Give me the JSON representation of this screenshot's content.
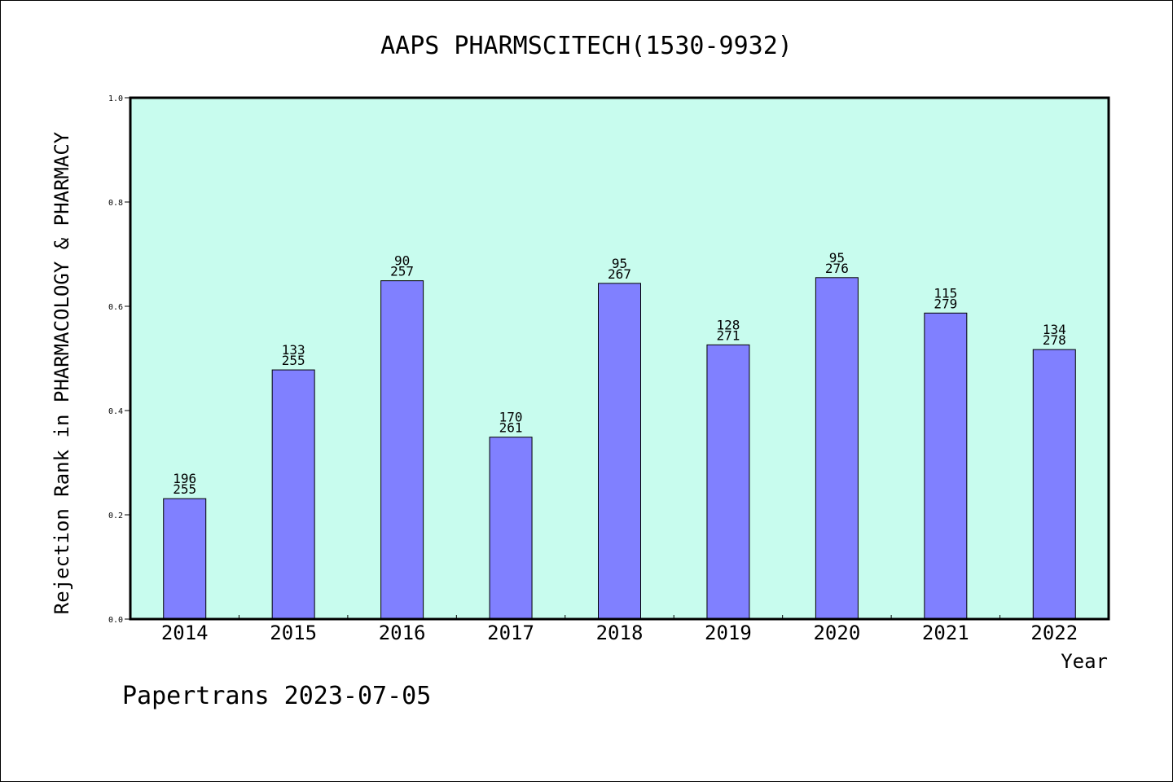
{
  "chart_data": {
    "type": "bar",
    "title": "AAPS PHARMSCITECH(1530-9932)",
    "xlabel": "Year",
    "ylabel": "Rejection Rank in PHARMACOLOGY & PHARMACY",
    "ylim": [
      0.0,
      1.0
    ],
    "yticks": [
      "0.0",
      "0.2",
      "0.4",
      "0.6",
      "0.8",
      "1.0"
    ],
    "grid": false,
    "categories": [
      "2014",
      "2015",
      "2016",
      "2017",
      "2018",
      "2019",
      "2020",
      "2021",
      "2022"
    ],
    "values": [
      0.231,
      0.478,
      0.649,
      0.349,
      0.644,
      0.526,
      0.655,
      0.587,
      0.517
    ],
    "ranks": [
      "196",
      "133",
      "90",
      "170",
      "95",
      "128",
      "95",
      "115",
      "134"
    ],
    "totals": [
      "255",
      "255",
      "257",
      "261",
      "267",
      "271",
      "276",
      "279",
      "278"
    ]
  },
  "footer": "Papertrans 2023-07-05",
  "colors": {
    "plot_background": "#c8fcee",
    "bar_fill": "#8080ff",
    "bar_stroke": "#000000"
  }
}
